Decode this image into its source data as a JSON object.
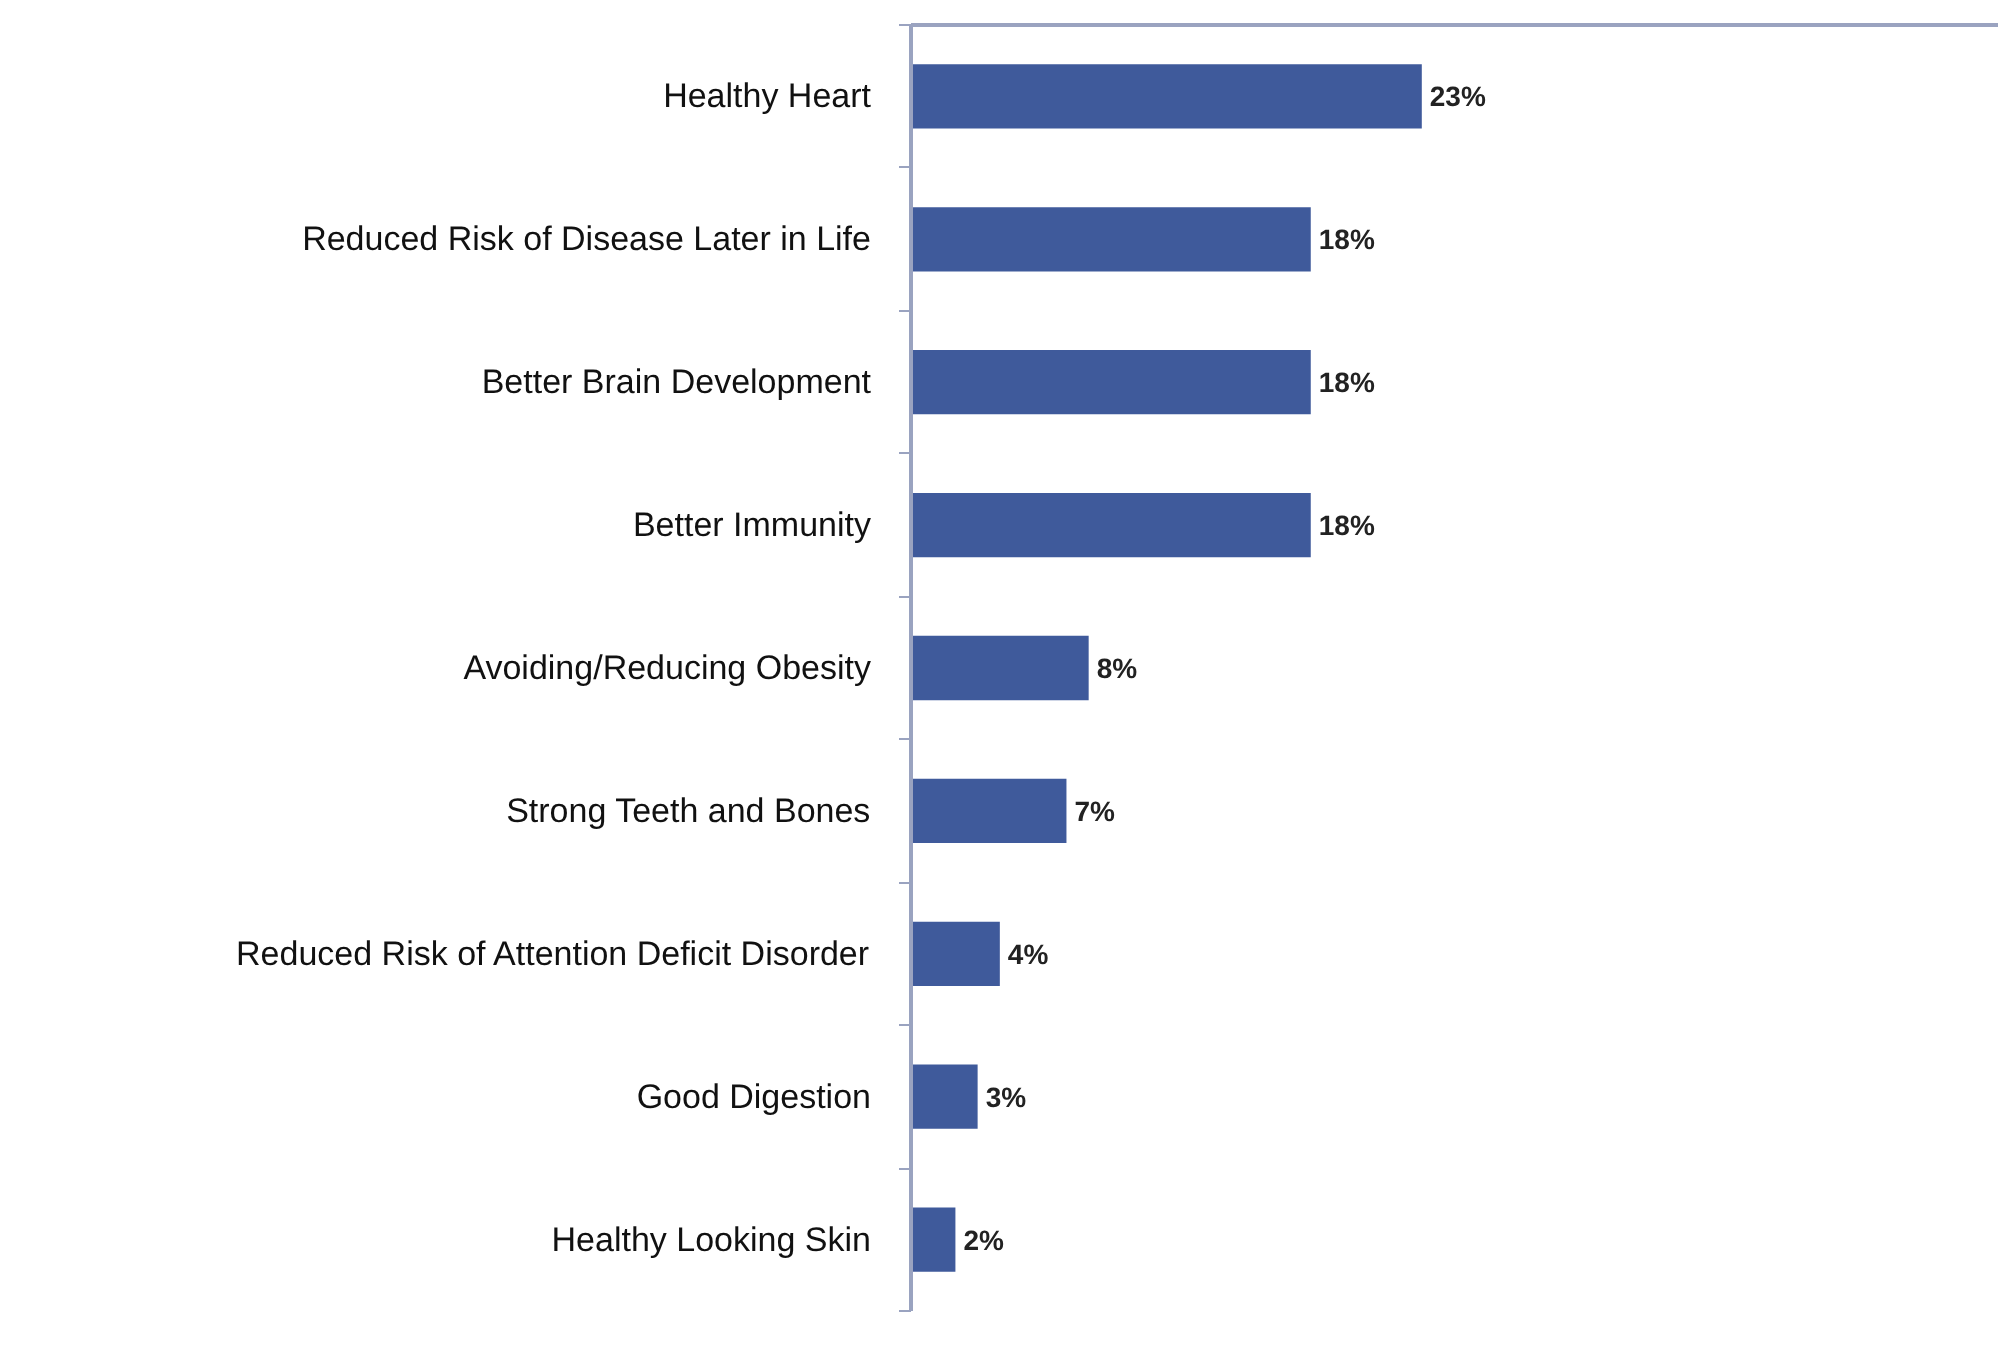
{
  "chart_data": {
    "type": "bar",
    "orientation": "horizontal",
    "tick_labels": "y",
    "categories": [
      "Healthy Heart",
      "Reduced Risk of Disease Later in Life",
      "Better Brain Development",
      "Better Immunity",
      "Avoiding/Reducing Obesity",
      "Strong Teeth and Bones",
      "Reduced Risk of Attention Deficit Disorder",
      "Good Digestion",
      "Healthy Looking Skin"
    ],
    "values": [
      23,
      18,
      18,
      18,
      8,
      7,
      4,
      3,
      2
    ],
    "value_labels": [
      "23%",
      "18%",
      "18%",
      "18%",
      "8%",
      "7%",
      "4%",
      "3%",
      "2%"
    ],
    "color": "#3f5a9b"
  }
}
